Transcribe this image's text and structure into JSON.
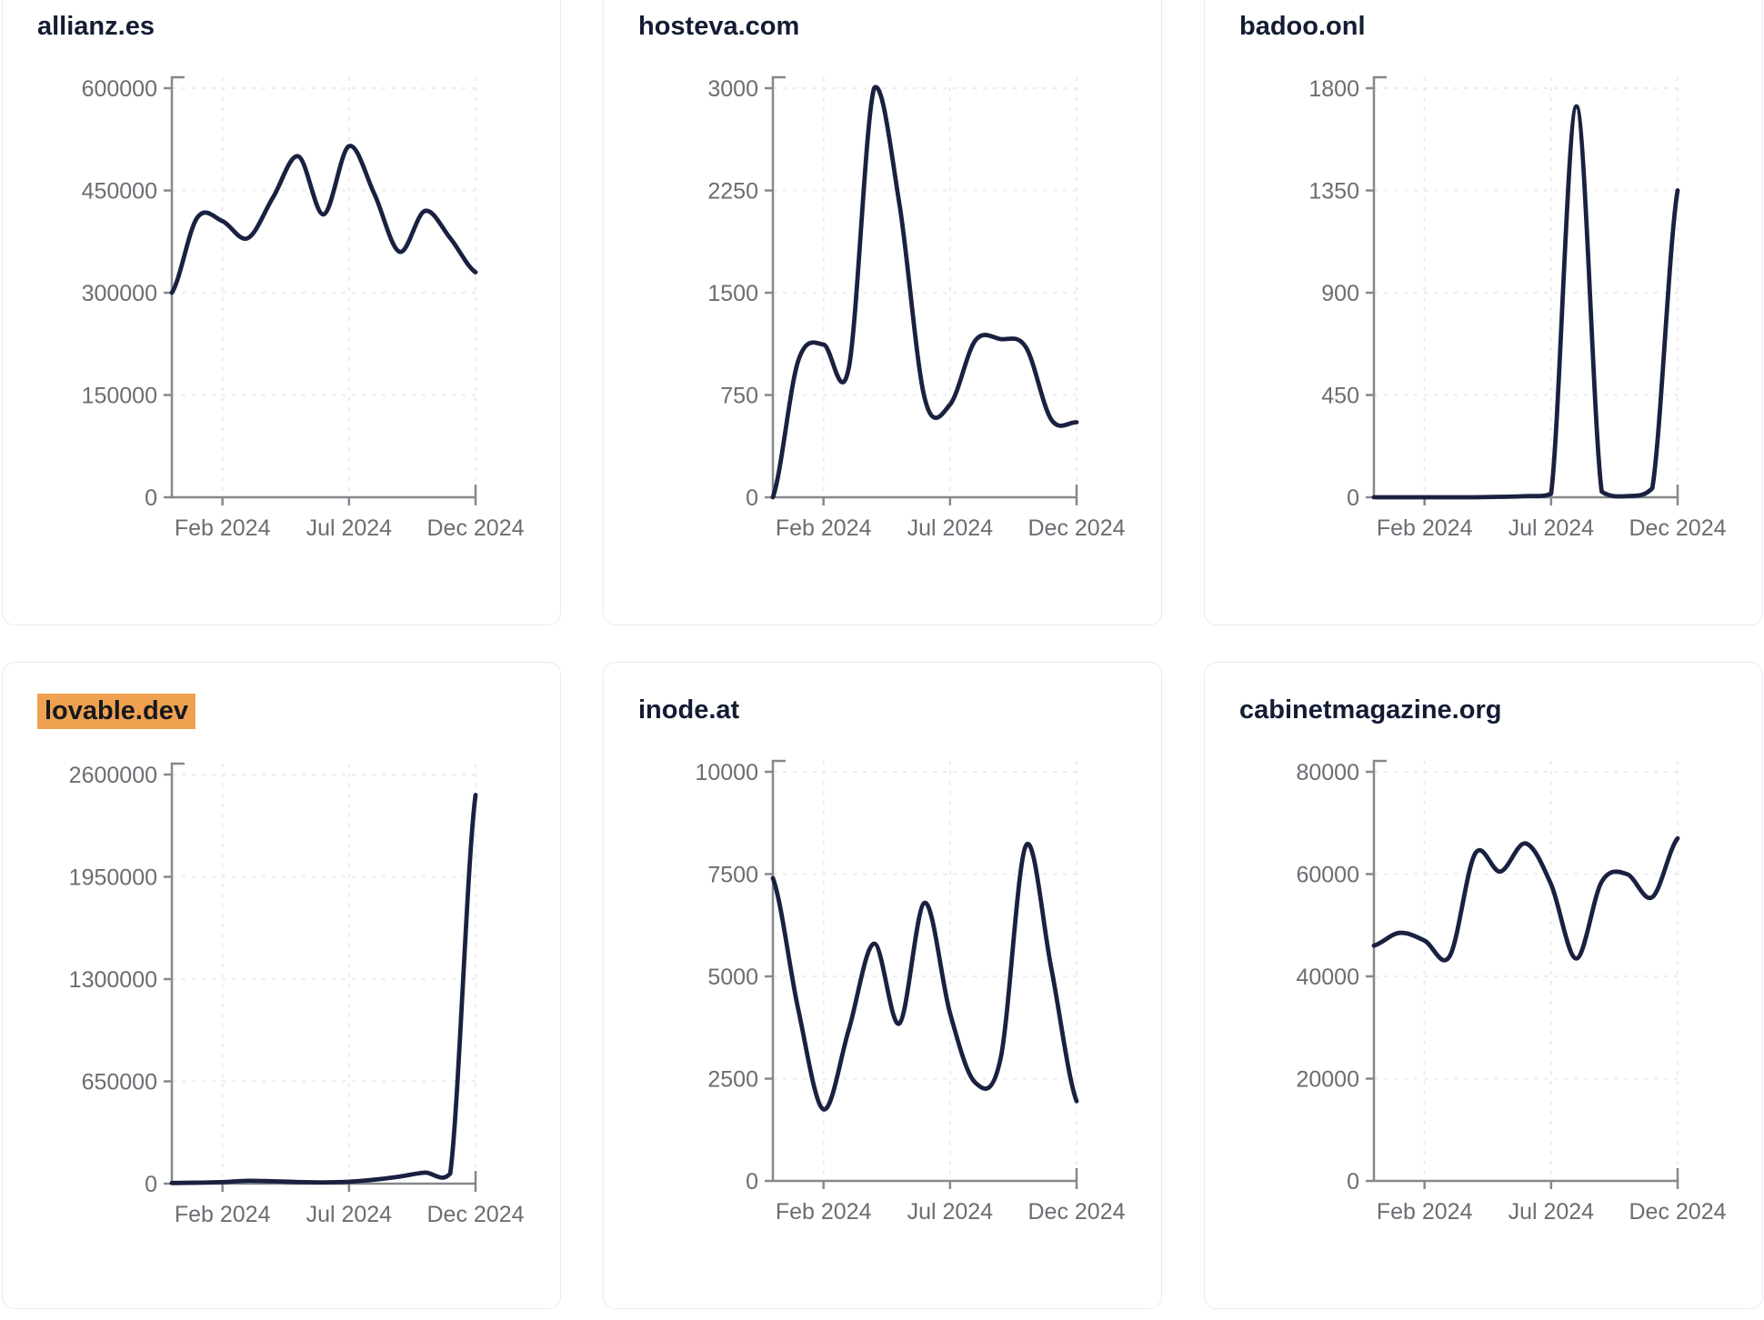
{
  "page": {
    "background_color": "#ffffff",
    "layout": "2x3 grid of website traffic line-chart cards"
  },
  "styles": {
    "line_color": "#1a2140",
    "title_color": "#131c33",
    "axis_label_color": "#6a6d72",
    "axis_line_color": "#85888d",
    "grid_color": "#ebebf1",
    "card_border_color": "#e9ebf4",
    "card_background": "#ffffff",
    "highlight_color": "#f0a150"
  },
  "chart_data": [
    {
      "type": "line",
      "title": "allianz.es",
      "title_highlighted": false,
      "x": [
        "Dec 2023",
        "Jan 2024",
        "Feb 2024",
        "Mar 2024",
        "Apr 2024",
        "May 2024",
        "Jun 2024",
        "Jul 2024",
        "Aug 2024",
        "Sep 2024",
        "Oct 2024",
        "Nov 2024",
        "Dec 2024"
      ],
      "values": [
        300000,
        410000,
        405000,
        380000,
        440000,
        500000,
        415000,
        515000,
        445000,
        360000,
        420000,
        380000,
        330000
      ],
      "y_ticks": [
        0,
        150000,
        300000,
        450000,
        600000
      ],
      "ylim": [
        0,
        600000
      ],
      "x_ticks": [
        {
          "label": "Feb 2024",
          "index": 2
        },
        {
          "label": "Jul 2024",
          "index": 7
        },
        {
          "label": "Dec 2024",
          "index": 12
        }
      ],
      "grid": "dashed",
      "legend": "none"
    },
    {
      "type": "line",
      "title": "hosteva.com",
      "title_highlighted": false,
      "x": [
        "Dec 2023",
        "Jan 2024",
        "Feb 2024",
        "Mar 2024",
        "Apr 2024",
        "May 2024",
        "Jun 2024",
        "Jul 2024",
        "Aug 2024",
        "Sep 2024",
        "Oct 2024",
        "Nov 2024",
        "Dec 2024"
      ],
      "values": [
        0,
        1000,
        1120,
        950,
        3000,
        2150,
        725,
        680,
        1150,
        1160,
        1100,
        570,
        550
      ],
      "y_ticks": [
        0,
        750,
        1500,
        2250,
        3000
      ],
      "ylim": [
        0,
        3000
      ],
      "x_ticks": [
        {
          "label": "Feb 2024",
          "index": 2
        },
        {
          "label": "Jul 2024",
          "index": 7
        },
        {
          "label": "Dec 2024",
          "index": 12
        }
      ],
      "grid": "dashed",
      "legend": "none"
    },
    {
      "type": "line",
      "title": "badoo.onl",
      "title_highlighted": false,
      "x": [
        "Dec 2023",
        "Jan 2024",
        "Feb 2024",
        "Mar 2024",
        "Apr 2024",
        "May 2024",
        "Jun 2024",
        "Jul 2024",
        "Aug 2024",
        "Sep 2024",
        "Oct 2024",
        "Nov 2024",
        "Dec 2024"
      ],
      "values": [
        0,
        0,
        0,
        0,
        0,
        2,
        5,
        15,
        1720,
        25,
        5,
        40,
        1350
      ],
      "y_ticks": [
        0,
        450,
        900,
        1350,
        1800
      ],
      "ylim": [
        0,
        1800
      ],
      "x_ticks": [
        {
          "label": "Feb 2024",
          "index": 2
        },
        {
          "label": "Jul 2024",
          "index": 7
        },
        {
          "label": "Dec 2024",
          "index": 12
        }
      ],
      "grid": "dashed",
      "legend": "none"
    },
    {
      "type": "line",
      "title": "lovable.dev",
      "title_highlighted": true,
      "x": [
        "Dec 2023",
        "Jan 2024",
        "Feb 2024",
        "Mar 2024",
        "Apr 2024",
        "May 2024",
        "Jun 2024",
        "Jul 2024",
        "Aug 2024",
        "Sep 2024",
        "Oct 2024",
        "Nov 2024",
        "Dec 2024"
      ],
      "values": [
        4000,
        6000,
        10000,
        18000,
        15000,
        10000,
        8000,
        12000,
        25000,
        45000,
        70000,
        65000,
        2470000
      ],
      "y_ticks": [
        0,
        650000,
        1300000,
        1950000,
        2600000
      ],
      "ylim": [
        0,
        2600000
      ],
      "x_ticks": [
        {
          "label": "Feb 2024",
          "index": 2
        },
        {
          "label": "Jul 2024",
          "index": 7
        },
        {
          "label": "Dec 2024",
          "index": 12
        }
      ],
      "grid": "dashed",
      "legend": "none"
    },
    {
      "type": "line",
      "title": "inode.at",
      "title_highlighted": false,
      "x": [
        "Dec 2023",
        "Jan 2024",
        "Feb 2024",
        "Mar 2024",
        "Apr 2024",
        "May 2024",
        "Jun 2024",
        "Jul 2024",
        "Aug 2024",
        "Sep 2024",
        "Oct 2024",
        "Nov 2024",
        "Dec 2024"
      ],
      "values": [
        7400,
        4200,
        1750,
        3700,
        5800,
        3850,
        6800,
        4100,
        2400,
        3000,
        8200,
        5200,
        1950
      ],
      "y_ticks": [
        0,
        2500,
        5000,
        7500,
        10000
      ],
      "ylim": [
        0,
        10000
      ],
      "x_ticks": [
        {
          "label": "Feb 2024",
          "index": 2
        },
        {
          "label": "Jul 2024",
          "index": 7
        },
        {
          "label": "Dec 2024",
          "index": 12
        }
      ],
      "grid": "dashed",
      "legend": "none"
    },
    {
      "type": "line",
      "title": "cabinetmagazine.org",
      "title_highlighted": false,
      "x": [
        "Dec 2023",
        "Jan 2024",
        "Feb 2024",
        "Mar 2024",
        "Apr 2024",
        "May 2024",
        "Jun 2024",
        "Jul 2024",
        "Aug 2024",
        "Sep 2024",
        "Oct 2024",
        "Nov 2024",
        "Dec 2024"
      ],
      "values": [
        46000,
        48500,
        47000,
        44000,
        64000,
        60500,
        66000,
        58000,
        43500,
        58500,
        60000,
        55500,
        67000
      ],
      "y_ticks": [
        0,
        20000,
        40000,
        60000,
        80000
      ],
      "ylim": [
        0,
        80000
      ],
      "x_ticks": [
        {
          "label": "Feb 2024",
          "index": 2
        },
        {
          "label": "Jul 2024",
          "index": 7
        },
        {
          "label": "Dec 2024",
          "index": 12
        }
      ],
      "grid": "dashed",
      "legend": "none"
    }
  ]
}
